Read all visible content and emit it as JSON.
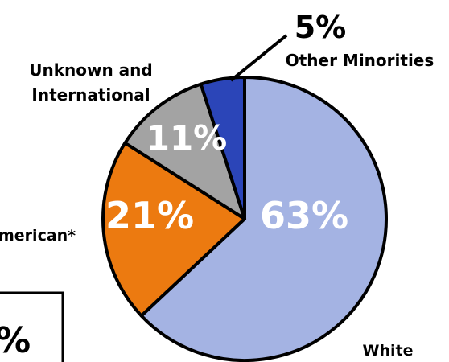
{
  "chart_data": {
    "type": "pie",
    "slices": [
      {
        "name": "White",
        "value": 63,
        "label": "63%",
        "color": "#a4b3e3"
      },
      {
        "name": "Hispanic American*",
        "value": 21,
        "label": "21%",
        "color": "#ec7a10"
      },
      {
        "name": "Unknown and International",
        "value": 11,
        "label": "11%",
        "color": "#a3a3a3"
      },
      {
        "name": "Other Minorities",
        "value": 5,
        "label": "5%",
        "color": "#2b45b8"
      }
    ],
    "labels": {
      "white": "White",
      "hispanic": "merican*",
      "unknown_line1": "Unknown and",
      "unknown_line2": "International",
      "other": "Other Minorities",
      "other_pct": "5%"
    },
    "partial_box_text": "%"
  }
}
